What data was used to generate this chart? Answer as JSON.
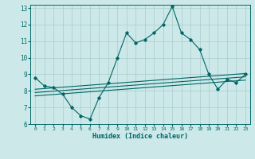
{
  "xlabel": "Humidex (Indice chaleur)",
  "bg_color": "#cce8e8",
  "line_color": "#006666",
  "grid_color": "#aacccc",
  "xlim": [
    -0.5,
    23.5
  ],
  "ylim": [
    6,
    13.2
  ],
  "yticks": [
    6,
    7,
    8,
    9,
    10,
    11,
    12,
    13
  ],
  "xticks": [
    0,
    1,
    2,
    3,
    4,
    5,
    6,
    7,
    8,
    9,
    10,
    11,
    12,
    13,
    14,
    15,
    16,
    17,
    18,
    19,
    20,
    21,
    22,
    23
  ],
  "main_x": [
    0,
    1,
    2,
    3,
    4,
    5,
    6,
    7,
    8,
    9,
    10,
    11,
    12,
    13,
    14,
    15,
    16,
    17,
    18,
    19,
    20,
    21,
    22,
    23
  ],
  "main_y": [
    8.8,
    8.3,
    8.2,
    7.8,
    7.0,
    6.5,
    6.3,
    7.6,
    8.5,
    10.0,
    11.5,
    10.9,
    11.1,
    11.5,
    12.0,
    13.1,
    11.5,
    11.1,
    10.5,
    9.0,
    8.1,
    8.7,
    8.5,
    9.0
  ],
  "line1_x": [
    0,
    23
  ],
  "line1_y": [
    8.1,
    9.05
  ],
  "line2_x": [
    0,
    23
  ],
  "line2_y": [
    7.9,
    8.85
  ],
  "line3_x": [
    0,
    23
  ],
  "line3_y": [
    7.7,
    8.65
  ]
}
